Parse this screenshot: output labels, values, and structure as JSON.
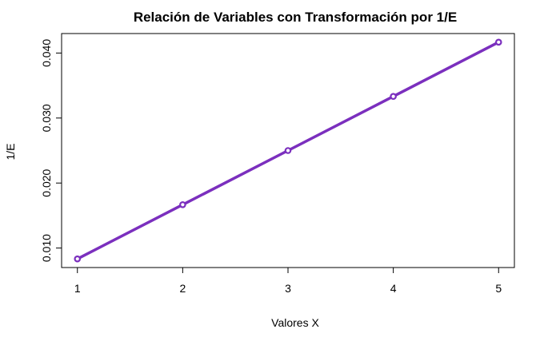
{
  "chart_data": {
    "type": "line",
    "title": "Relación de Variables con Transformación por 1/E",
    "xlabel": "Valores X",
    "ylabel": "1/E",
    "x": [
      1,
      2,
      3,
      4,
      5
    ],
    "series": [
      {
        "name": "1/E",
        "values": [
          0.00833,
          0.01667,
          0.025,
          0.03333,
          0.04167
        ]
      }
    ],
    "xlim": [
      0.85,
      5.15
    ],
    "ylim": [
      0.007,
      0.043
    ],
    "xticks": [
      1,
      2,
      3,
      4,
      5
    ],
    "xtick_labels": [
      "1",
      "2",
      "3",
      "4",
      "5"
    ],
    "yticks": [
      0.01,
      0.02,
      0.03,
      0.04
    ],
    "ytick_labels": [
      "0.010",
      "0.020",
      "0.030",
      "0.040"
    ],
    "grid": false,
    "line_color": "#7B2FBE",
    "marker_color": "#7B2FBE"
  }
}
